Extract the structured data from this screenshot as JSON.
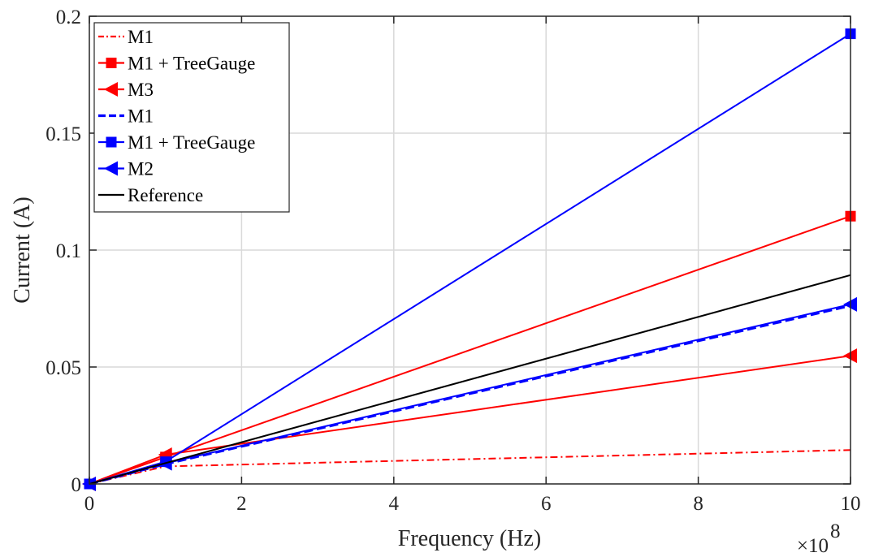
{
  "chart_data": {
    "type": "line",
    "xlabel": "Frequency (Hz)",
    "ylabel": "Current (A)",
    "x_exponent_label": "×10",
    "x_exponent_power": "8",
    "xlim": [
      0,
      10
    ],
    "ylim": [
      0,
      0.2
    ],
    "x_scale_factor": 100000000,
    "xticks": [
      0,
      2,
      4,
      6,
      8,
      10
    ],
    "xtick_labels": [
      "0",
      "2",
      "4",
      "6",
      "8",
      "10"
    ],
    "yticks": [
      0,
      0.05,
      0.1,
      0.15,
      0.2
    ],
    "ytick_labels": [
      "0",
      "0.05",
      "0.1",
      "0.15",
      "0.2"
    ],
    "grid": true,
    "legend_position": "top-left",
    "series": [
      {
        "name": "M1",
        "color": "#ff0000",
        "dash": "dashdot",
        "marker": "none",
        "x": [
          0,
          1,
          10
        ],
        "y": [
          0,
          0.0075,
          0.0145
        ]
      },
      {
        "name": "M1 + TreeGauge",
        "color": "#ff0000",
        "dash": "solid",
        "marker": "square",
        "x": [
          0,
          1,
          10
        ],
        "y": [
          0,
          0.0115,
          0.1145
        ]
      },
      {
        "name": "M3",
        "color": "#ff0000",
        "dash": "solid",
        "marker": "triangle-left",
        "x": [
          0,
          1,
          10
        ],
        "y": [
          0,
          0.0125,
          0.0548
        ]
      },
      {
        "name": "M1",
        "color": "#0000ff",
        "dash": "dashed",
        "marker": "none",
        "x": [
          0,
          1,
          10
        ],
        "y": [
          0,
          0.0085,
          0.0762
        ]
      },
      {
        "name": "M1 + TreeGauge",
        "color": "#0000ff",
        "dash": "solid",
        "marker": "square",
        "x": [
          0,
          1,
          10
        ],
        "y": [
          0,
          0.0095,
          0.1925
        ]
      },
      {
        "name": "M2",
        "color": "#0000ff",
        "dash": "solid",
        "marker": "triangle-left",
        "x": [
          0,
          1,
          10
        ],
        "y": [
          0,
          0.0088,
          0.0768
        ]
      },
      {
        "name": "Reference",
        "color": "#000000",
        "dash": "solid",
        "marker": "none",
        "x": [
          0,
          1,
          10
        ],
        "y": [
          0,
          0.0089,
          0.0893
        ]
      }
    ]
  }
}
